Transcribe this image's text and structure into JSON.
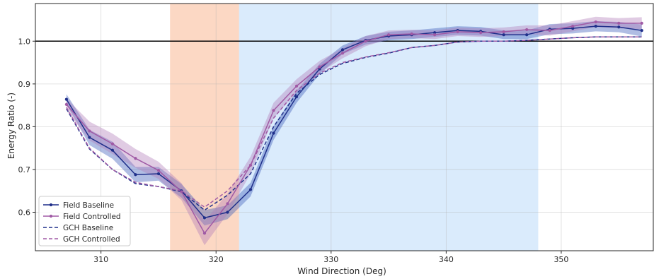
{
  "chart_data": {
    "type": "line",
    "title": "",
    "xlabel": "Wind Direction (Deg)",
    "ylabel": "Energy Ratio (-)",
    "xlim": [
      304.3,
      358.0
    ],
    "ylim": [
      0.51,
      1.088
    ],
    "xticks": [
      310,
      320,
      330,
      340,
      350
    ],
    "yticks": [
      0.6,
      0.7,
      0.8,
      0.9,
      1.0
    ],
    "xtick_labels": [
      "310",
      "320",
      "330",
      "340",
      "350"
    ],
    "ytick_labels": [
      "0.6",
      "0.7",
      "0.8",
      "0.9",
      "1.0"
    ],
    "grid": true,
    "legend_position": "lower-left",
    "reference_line": {
      "y": 1.0,
      "color": "#000000"
    },
    "shaded_regions": [
      {
        "x": [
          316,
          322
        ],
        "color": "#f8a87c",
        "opacity": 0.45
      },
      {
        "x": [
          322,
          348
        ],
        "color": "#9ecbf8",
        "opacity": 0.38
      }
    ],
    "x": [
      307,
      309,
      311,
      313,
      315,
      317,
      319,
      321,
      323,
      325,
      327,
      329,
      331,
      333,
      335,
      337,
      339,
      341,
      343,
      345,
      347,
      349,
      351,
      353,
      355,
      357
    ],
    "series": [
      {
        "name": "Field Baseline",
        "style": "solid-marker",
        "color": "#1f2f8a",
        "band_color": "#3a5ab8",
        "values": [
          0.864,
          0.775,
          0.745,
          0.688,
          0.69,
          0.65,
          0.587,
          0.6,
          0.653,
          0.785,
          0.87,
          0.935,
          0.98,
          1.002,
          1.012,
          1.015,
          1.02,
          1.025,
          1.023,
          1.015,
          1.015,
          1.028,
          1.03,
          1.035,
          1.033,
          1.025
        ],
        "band": [
          0.012,
          0.018,
          0.02,
          0.018,
          0.016,
          0.016,
          0.018,
          0.016,
          0.016,
          0.016,
          0.014,
          0.012,
          0.01,
          0.01,
          0.01,
          0.01,
          0.01,
          0.01,
          0.01,
          0.01,
          0.01,
          0.012,
          0.012,
          0.012,
          0.012,
          0.014
        ]
      },
      {
        "name": "Field Controlled",
        "style": "solid-marker",
        "color": "#a05aa5",
        "band_color": "#b27cb8",
        "values": [
          0.852,
          0.79,
          0.76,
          0.726,
          0.698,
          0.648,
          0.551,
          0.62,
          0.71,
          0.838,
          0.895,
          0.94,
          0.972,
          1.0,
          1.015,
          1.017,
          1.015,
          1.022,
          1.02,
          1.022,
          1.027,
          1.025,
          1.035,
          1.045,
          1.042,
          1.042
        ],
        "band": [
          0.014,
          0.022,
          0.024,
          0.022,
          0.02,
          0.02,
          0.028,
          0.024,
          0.02,
          0.018,
          0.016,
          0.014,
          0.012,
          0.012,
          0.01,
          0.01,
          0.01,
          0.01,
          0.01,
          0.01,
          0.01,
          0.012,
          0.012,
          0.012,
          0.012,
          0.014
        ]
      },
      {
        "name": "GCH Baseline",
        "style": "dashed",
        "color": "#1f2f8a",
        "values": [
          0.842,
          0.748,
          0.7,
          0.667,
          0.66,
          0.648,
          0.605,
          0.64,
          0.69,
          0.8,
          0.878,
          0.922,
          0.948,
          0.962,
          0.972,
          0.985,
          0.99,
          0.998,
          1.0,
          1.0,
          1.002,
          1.005,
          1.008,
          1.01,
          1.01,
          1.01
        ]
      },
      {
        "name": "GCH Controlled",
        "style": "dashed",
        "color": "#a05aa5",
        "values": [
          0.845,
          0.75,
          0.7,
          0.67,
          0.66,
          0.65,
          0.612,
          0.65,
          0.71,
          0.82,
          0.885,
          0.925,
          0.95,
          0.963,
          0.973,
          0.985,
          0.99,
          0.998,
          1.0,
          1.0,
          1.002,
          1.005,
          1.008,
          1.01,
          1.01,
          1.01
        ]
      }
    ]
  }
}
